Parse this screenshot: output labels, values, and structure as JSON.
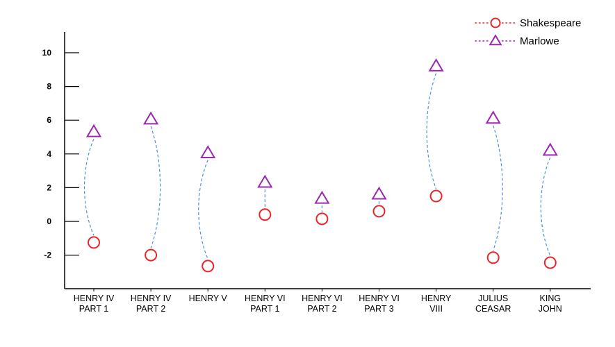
{
  "chart_data": {
    "type": "scatter",
    "categories": [
      [
        "HENRY IV",
        "PART 1"
      ],
      [
        "HENRY IV",
        "PART 2"
      ],
      [
        "HENRY V"
      ],
      [
        "HENRY VI",
        "PART 1"
      ],
      [
        "HENRY VI",
        "PART 2"
      ],
      [
        "HENRY VI",
        "PART 3"
      ],
      [
        "HENRY",
        "VIII"
      ],
      [
        "JULIUS",
        "CEASAR"
      ],
      [
        "KING",
        "JOHN"
      ]
    ],
    "series": [
      {
        "name": "Shakespeare",
        "marker": "circle",
        "color": "#e8262a",
        "values": [
          -1.25,
          -2.0,
          -2.65,
          0.4,
          0.15,
          0.6,
          1.5,
          -2.15,
          -2.45
        ]
      },
      {
        "name": "Marlowe",
        "marker": "triangle",
        "color": "#9c27b0",
        "values": [
          5.3,
          6.05,
          4.05,
          2.3,
          1.35,
          1.6,
          9.2,
          6.1,
          4.2
        ]
      }
    ],
    "connector_color": "#4a90e2",
    "yticks": [
      -2,
      0,
      2,
      4,
      6,
      8,
      10
    ],
    "ylim": [
      -4,
      11.2
    ],
    "title": "",
    "xlabel": "",
    "ylabel": "",
    "legend_position": "top-right",
    "grid": false
  }
}
